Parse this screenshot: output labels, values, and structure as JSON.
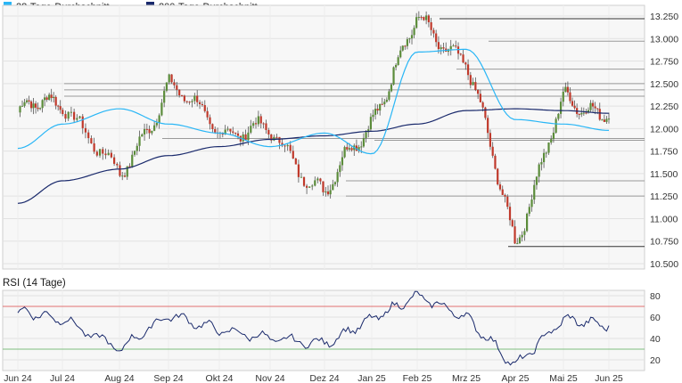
{
  "chart_data": [
    {
      "type": "candlestick",
      "legend": [
        {
          "name": "38-Tage-Durchschnitt",
          "color": "#29b6f6"
        },
        {
          "name": "200-Tage-Durchschnitt",
          "color": "#1a2a6c"
        }
      ],
      "legend_position": "top-left",
      "ylim": [
        10.5,
        13.25
      ],
      "y_ticks": [
        "13.250",
        "13.000",
        "12.750",
        "12.500",
        "12.250",
        "12.000",
        "11.750",
        "11.500",
        "11.250",
        "11.000",
        "10.750",
        "10.500"
      ],
      "y_tick_values": [
        13.25,
        13.0,
        12.75,
        12.5,
        12.25,
        12.0,
        11.75,
        11.5,
        11.25,
        11.0,
        10.75,
        10.5
      ],
      "grid": true,
      "up_color": "#5b8c3a",
      "down_color": "#c0392b",
      "support_resistance_levels": [
        13.22,
        12.97,
        12.66,
        12.5,
        12.43,
        12.36,
        11.89,
        11.87,
        11.42,
        11.25,
        10.69
      ],
      "key_points": [
        {
          "x": "Jun 24",
          "close": 12.18
        },
        {
          "x": "Jul 24",
          "close": 12.33
        },
        {
          "x": "Aug 24",
          "close": 11.43
        },
        {
          "x": "Sep 24",
          "close": 12.48
        },
        {
          "x": "Okt 24",
          "close": 12.0
        },
        {
          "x": "Nov 24",
          "close": 11.95
        },
        {
          "x": "Dez 24",
          "close": 11.28
        },
        {
          "x": "Jan 25",
          "close": 12.1
        },
        {
          "x": "Feb 25",
          "close": 13.2
        },
        {
          "x": "Mrz 25",
          "close": 12.75
        },
        {
          "x": "Apr 25",
          "close": 10.75
        },
        {
          "x": "Mai 25",
          "close": 12.3
        },
        {
          "x": "Jun 25",
          "close": 12.2
        }
      ],
      "ma38_key_points": [
        11.78,
        12.05,
        12.22,
        12.05,
        11.95,
        11.8,
        11.95,
        11.72,
        12.85,
        12.88,
        12.1,
        12.05,
        11.98
      ],
      "ma200_key_points": [
        11.17,
        11.42,
        11.55,
        11.7,
        11.8,
        11.88,
        11.92,
        11.97,
        12.05,
        12.2,
        12.22,
        12.2,
        12.17
      ]
    },
    {
      "type": "line",
      "title": "RSI (14 Tage)",
      "ylim": [
        10,
        85
      ],
      "y_ticks": [
        "80",
        "60",
        "40",
        "20"
      ],
      "y_tick_values": [
        80,
        60,
        40,
        20
      ],
      "reference_lines": [
        {
          "value": 70,
          "color": "#e07070"
        },
        {
          "value": 30,
          "color": "#7fbf7f"
        }
      ],
      "line_color": "#1a2a6c",
      "key_points": [
        {
          "x": "Jun 24",
          "rsi": 66
        },
        {
          "x": "Jul 24",
          "rsi": 58
        },
        {
          "x": "Aug 24",
          "rsi": 30
        },
        {
          "x": "Sep 24",
          "rsi": 62
        },
        {
          "x": "Okt 24",
          "rsi": 48
        },
        {
          "x": "Nov 24",
          "rsi": 40
        },
        {
          "x": "Dez 24",
          "rsi": 35
        },
        {
          "x": "Jan 25",
          "rsi": 58
        },
        {
          "x": "Feb 25",
          "rsi": 80
        },
        {
          "x": "Mrz 25",
          "rsi": 60
        },
        {
          "x": "Apr 25",
          "rsi": 14
        },
        {
          "x": "Mai 25",
          "rsi": 58
        },
        {
          "x": "Jun 25",
          "rsi": 52
        }
      ]
    }
  ],
  "x_axis": {
    "ticks": [
      "Jun 24",
      "Jul 24",
      "Aug 24",
      "Sep 24",
      "Okt 24",
      "Nov 24",
      "Dez 24",
      "Jan 25",
      "Feb 25",
      "Mrz 25",
      "Apr 25",
      "Mai 25",
      "Jun 25"
    ]
  }
}
